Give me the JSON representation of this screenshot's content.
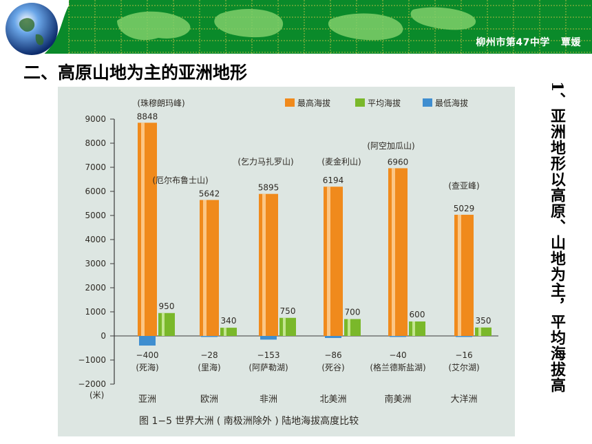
{
  "header": {
    "school_author": "柳州市第47中学   覃媛"
  },
  "slide": {
    "title": "二、高原山地为主的亚洲地形",
    "side_note": "1、亚洲地形以高原、山地为主，平均海拔高"
  },
  "colors": {
    "banner": "#0a8a2a",
    "banner_grid": "#d8c84a",
    "land": "#7fcf6a",
    "photo_bg": "#dde6e2",
    "max_bar": "#f08a1c",
    "avg_bar": "#7ab82a",
    "min_bar": "#3f8ed0",
    "label_text": "#2e2a24"
  },
  "chart_data": {
    "type": "bar",
    "categories": [
      "亚洲",
      "欧洲",
      "非洲",
      "北美洲",
      "南美洲",
      "大洋洲"
    ],
    "series": [
      {
        "name": "最高海拔",
        "values": [
          8848,
          5642,
          5895,
          6194,
          6960,
          5029
        ]
      },
      {
        "name": "平均海拔",
        "values": [
          950,
          340,
          750,
          700,
          600,
          350
        ]
      },
      {
        "name": "最低海拔",
        "values": [
          -400,
          -28,
          -153,
          -86,
          -40,
          -16
        ]
      }
    ],
    "value_labels": {
      "max": [
        "8848",
        "5642",
        "5895",
        "6194",
        "6960",
        "5029"
      ],
      "avg": [
        "950",
        "340",
        "750",
        "700",
        "600",
        "350"
      ],
      "min": [
        "−400",
        "−28",
        "−153",
        "−86",
        "−40",
        "−16"
      ]
    },
    "peak_names": [
      "(珠穆朗玛峰)",
      "(厄尔布鲁士山)",
      "(乞力马扎罗山)",
      "(麦金利山)",
      "(阿空加瓜山)",
      "(查亚峰)"
    ],
    "low_names": [
      "(死海)",
      "(里海)",
      "(阿萨勒湖)",
      "(死谷)",
      "(格兰德斯盐湖)",
      "(艾尔湖)"
    ],
    "y_ticks": [
      "9000",
      "8000",
      "7000",
      "6000",
      "5000",
      "4000",
      "3000",
      "2000",
      "1000",
      "0",
      "−1000",
      "−2000"
    ],
    "y_unit": "(米)",
    "ylim": [
      -2000,
      9000
    ],
    "caption": "图 1−5   世界大洲 ( 南极洲除外 ) 陆地海拔高度比较",
    "legend_position": "top-right",
    "grid": false
  }
}
